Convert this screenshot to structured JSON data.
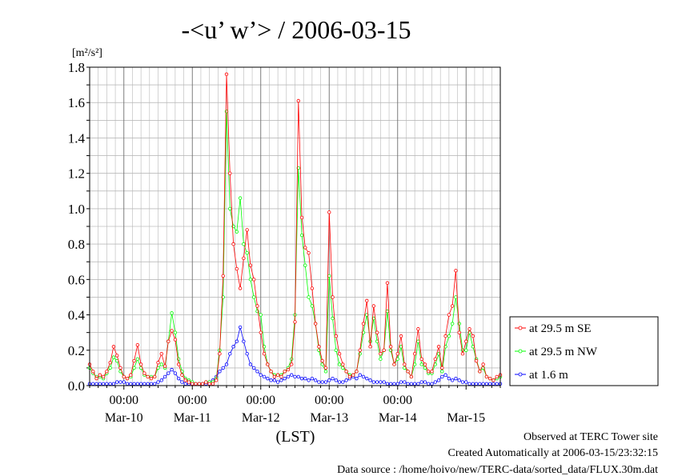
{
  "chart_data": {
    "type": "line",
    "title": "-<u’ w’> / 2006-03-15",
    "ylabel": "[m²/s²]",
    "xlabel": "(LST)",
    "ylim": [
      0,
      1.8
    ],
    "y_ticks": [
      "0.0",
      "0.2",
      "0.4",
      "0.6",
      "0.8",
      "1.0",
      "1.2",
      "1.4",
      "1.6",
      "1.8"
    ],
    "x_unit": "days since 2006-03-09 12:00 LST",
    "xlim": [
      0,
      6
    ],
    "x_tick_time_label": "00:00",
    "x_day_labels": [
      "Mar-10",
      "Mar-11",
      "Mar-12",
      "Mar-13",
      "Mar-14",
      "Mar-15"
    ],
    "grid": true,
    "legend_position": "right",
    "series": [
      {
        "name": "at 29.5 m SE",
        "color": "#ff0000",
        "x": [
          0.0,
          0.05,
          0.1,
          0.15,
          0.2,
          0.25,
          0.3,
          0.35,
          0.4,
          0.45,
          0.5,
          0.55,
          0.6,
          0.65,
          0.7,
          0.75,
          0.8,
          0.85,
          0.9,
          0.95,
          1.0,
          1.05,
          1.1,
          1.15,
          1.2,
          1.25,
          1.3,
          1.35,
          1.4,
          1.45,
          1.5,
          1.55,
          1.6,
          1.65,
          1.7,
          1.75,
          1.8,
          1.85,
          1.9,
          1.95,
          2.0,
          2.05,
          2.1,
          2.15,
          2.2,
          2.25,
          2.3,
          2.35,
          2.4,
          2.45,
          2.5,
          2.55,
          2.6,
          2.65,
          2.7,
          2.75,
          2.8,
          2.85,
          2.9,
          2.95,
          3.0,
          3.05,
          3.1,
          3.15,
          3.2,
          3.25,
          3.3,
          3.35,
          3.4,
          3.45,
          3.5,
          3.55,
          3.6,
          3.65,
          3.7,
          3.75,
          3.8,
          3.85,
          3.9,
          3.95,
          4.0,
          4.05,
          4.1,
          4.15,
          4.2,
          4.25,
          4.3,
          4.35,
          4.4,
          4.45,
          4.5,
          4.55,
          4.6,
          4.65,
          4.7,
          4.75,
          4.8,
          4.85,
          4.9,
          4.95,
          5.0,
          5.05,
          5.1,
          5.15,
          5.2,
          5.25,
          5.3,
          5.35,
          5.4,
          5.45,
          5.5,
          5.55,
          5.6,
          5.65,
          5.7,
          5.75,
          5.8,
          5.85,
          5.9,
          5.95,
          6.0
        ],
        "values": [
          0.12,
          0.08,
          0.04,
          0.06,
          0.05,
          0.08,
          0.13,
          0.22,
          0.17,
          0.1,
          0.05,
          0.04,
          0.06,
          0.14,
          0.23,
          0.12,
          0.07,
          0.05,
          0.04,
          0.05,
          0.13,
          0.18,
          0.11,
          0.25,
          0.31,
          0.26,
          0.12,
          0.06,
          0.03,
          0.02,
          0.01,
          0.01,
          0.01,
          0.01,
          0.02,
          0.01,
          0.01,
          0.03,
          0.18,
          0.62,
          1.76,
          1.2,
          0.8,
          0.66,
          0.55,
          0.72,
          0.88,
          0.68,
          0.6,
          0.45,
          0.3,
          0.18,
          0.12,
          0.08,
          0.05,
          0.06,
          0.05,
          0.08,
          0.09,
          0.12,
          0.36,
          1.61,
          0.95,
          0.78,
          0.75,
          0.55,
          0.35,
          0.22,
          0.14,
          0.1,
          0.98,
          0.5,
          0.28,
          0.18,
          0.12,
          0.08,
          0.05,
          0.06,
          0.08,
          0.2,
          0.35,
          0.48,
          0.22,
          0.45,
          0.3,
          0.18,
          0.2,
          0.58,
          0.22,
          0.12,
          0.18,
          0.28,
          0.12,
          0.08,
          0.05,
          0.18,
          0.32,
          0.15,
          0.12,
          0.08,
          0.08,
          0.15,
          0.22,
          0.1,
          0.28,
          0.4,
          0.45,
          0.65,
          0.3,
          0.18,
          0.25,
          0.32,
          0.28,
          0.14,
          0.08,
          0.12,
          0.05,
          0.04,
          0.03,
          0.05,
          0.06
        ]
      },
      {
        "name": "at 29.5 m NW",
        "color": "#00ff00",
        "x": [
          0.0,
          0.05,
          0.1,
          0.15,
          0.2,
          0.25,
          0.3,
          0.35,
          0.4,
          0.45,
          0.5,
          0.55,
          0.6,
          0.65,
          0.7,
          0.75,
          0.8,
          0.85,
          0.9,
          0.95,
          1.0,
          1.05,
          1.1,
          1.15,
          1.2,
          1.25,
          1.3,
          1.35,
          1.4,
          1.45,
          1.5,
          1.55,
          1.6,
          1.65,
          1.7,
          1.75,
          1.8,
          1.85,
          1.9,
          1.95,
          2.0,
          2.05,
          2.1,
          2.15,
          2.2,
          2.25,
          2.3,
          2.35,
          2.4,
          2.45,
          2.5,
          2.55,
          2.6,
          2.65,
          2.7,
          2.75,
          2.8,
          2.85,
          2.9,
          2.95,
          3.0,
          3.05,
          3.1,
          3.15,
          3.2,
          3.25,
          3.3,
          3.35,
          3.4,
          3.45,
          3.5,
          3.55,
          3.6,
          3.65,
          3.7,
          3.75,
          3.8,
          3.85,
          3.9,
          3.95,
          4.0,
          4.05,
          4.1,
          4.15,
          4.2,
          4.25,
          4.3,
          4.35,
          4.4,
          4.45,
          4.5,
          4.55,
          4.6,
          4.65,
          4.7,
          4.75,
          4.8,
          4.85,
          4.9,
          4.95,
          5.0,
          5.05,
          5.1,
          5.15,
          5.2,
          5.25,
          5.3,
          5.35,
          5.4,
          5.45,
          5.5,
          5.55,
          5.6,
          5.65,
          5.7,
          5.75,
          5.8,
          5.85,
          5.9,
          5.95,
          6.0
        ],
        "values": [
          0.1,
          0.07,
          0.05,
          0.05,
          0.04,
          0.07,
          0.1,
          0.16,
          0.14,
          0.08,
          0.05,
          0.04,
          0.05,
          0.1,
          0.15,
          0.1,
          0.06,
          0.05,
          0.05,
          0.05,
          0.1,
          0.12,
          0.1,
          0.25,
          0.41,
          0.3,
          0.15,
          0.08,
          0.04,
          0.03,
          0.02,
          0.01,
          0.01,
          0.01,
          0.02,
          0.02,
          0.02,
          0.04,
          0.2,
          0.5,
          1.55,
          1.0,
          0.9,
          0.87,
          1.06,
          0.8,
          0.75,
          0.6,
          0.5,
          0.42,
          0.4,
          0.22,
          0.12,
          0.08,
          0.06,
          0.06,
          0.06,
          0.08,
          0.1,
          0.15,
          0.4,
          1.23,
          0.85,
          0.68,
          0.5,
          0.45,
          0.35,
          0.2,
          0.12,
          0.08,
          0.62,
          0.38,
          0.2,
          0.12,
          0.1,
          0.08,
          0.06,
          0.06,
          0.08,
          0.18,
          0.3,
          0.4,
          0.25,
          0.38,
          0.25,
          0.15,
          0.2,
          0.42,
          0.2,
          0.12,
          0.15,
          0.22,
          0.1,
          0.08,
          0.05,
          0.12,
          0.25,
          0.12,
          0.1,
          0.07,
          0.07,
          0.12,
          0.18,
          0.08,
          0.22,
          0.28,
          0.35,
          0.5,
          0.35,
          0.2,
          0.2,
          0.3,
          0.22,
          0.15,
          0.08,
          0.1,
          0.05,
          0.04,
          0.03,
          0.04,
          0.05
        ]
      },
      {
        "name": "at 1.6 m",
        "color": "#0000ff",
        "x": [
          0.0,
          0.05,
          0.1,
          0.15,
          0.2,
          0.25,
          0.3,
          0.35,
          0.4,
          0.45,
          0.5,
          0.55,
          0.6,
          0.65,
          0.7,
          0.75,
          0.8,
          0.85,
          0.9,
          0.95,
          1.0,
          1.05,
          1.1,
          1.15,
          1.2,
          1.25,
          1.3,
          1.35,
          1.4,
          1.45,
          1.5,
          1.55,
          1.6,
          1.65,
          1.7,
          1.75,
          1.8,
          1.85,
          1.9,
          1.95,
          2.0,
          2.05,
          2.1,
          2.15,
          2.2,
          2.25,
          2.3,
          2.35,
          2.4,
          2.45,
          2.5,
          2.55,
          2.6,
          2.65,
          2.7,
          2.75,
          2.8,
          2.85,
          2.9,
          2.95,
          3.0,
          3.05,
          3.1,
          3.15,
          3.2,
          3.25,
          3.3,
          3.35,
          3.4,
          3.45,
          3.5,
          3.55,
          3.6,
          3.65,
          3.7,
          3.75,
          3.8,
          3.85,
          3.9,
          3.95,
          4.0,
          4.05,
          4.1,
          4.15,
          4.2,
          4.25,
          4.3,
          4.35,
          4.4,
          4.45,
          4.5,
          4.55,
          4.6,
          4.65,
          4.7,
          4.75,
          4.8,
          4.85,
          4.9,
          4.95,
          5.0,
          5.05,
          5.1,
          5.15,
          5.2,
          5.25,
          5.3,
          5.35,
          5.4,
          5.45,
          5.5,
          5.55,
          5.6,
          5.65,
          5.7,
          5.75,
          5.8,
          5.85,
          5.9,
          5.95,
          6.0
        ],
        "values": [
          0.01,
          0.01,
          0.01,
          0.01,
          0.01,
          0.01,
          0.01,
          0.01,
          0.02,
          0.02,
          0.02,
          0.01,
          0.01,
          0.01,
          0.01,
          0.01,
          0.01,
          0.01,
          0.01,
          0.01,
          0.02,
          0.03,
          0.05,
          0.07,
          0.09,
          0.07,
          0.04,
          0.02,
          0.01,
          0.01,
          0.01,
          0.01,
          0.01,
          0.01,
          0.01,
          0.02,
          0.03,
          0.05,
          0.08,
          0.1,
          0.12,
          0.18,
          0.22,
          0.25,
          0.33,
          0.25,
          0.18,
          0.12,
          0.1,
          0.08,
          0.06,
          0.05,
          0.04,
          0.03,
          0.03,
          0.02,
          0.03,
          0.04,
          0.05,
          0.06,
          0.05,
          0.05,
          0.04,
          0.04,
          0.03,
          0.04,
          0.03,
          0.02,
          0.02,
          0.02,
          0.03,
          0.04,
          0.03,
          0.02,
          0.02,
          0.03,
          0.04,
          0.05,
          0.04,
          0.06,
          0.05,
          0.04,
          0.03,
          0.02,
          0.02,
          0.02,
          0.02,
          0.01,
          0.01,
          0.01,
          0.01,
          0.02,
          0.02,
          0.01,
          0.01,
          0.01,
          0.01,
          0.02,
          0.02,
          0.01,
          0.01,
          0.02,
          0.03,
          0.05,
          0.06,
          0.04,
          0.03,
          0.04,
          0.03,
          0.02,
          0.02,
          0.01,
          0.01,
          0.01,
          0.01,
          0.01,
          0.01,
          0.01,
          0.01,
          0.01,
          0.01
        ]
      }
    ]
  },
  "footer": {
    "line1": "Observed at TERC Tower site",
    "line2": "Created Automatically at 2006-03-15/23:32:15",
    "line3": "Data source : /home/hoivo/new/TERC-data/sorted_data/FLUX.30m.dat"
  }
}
